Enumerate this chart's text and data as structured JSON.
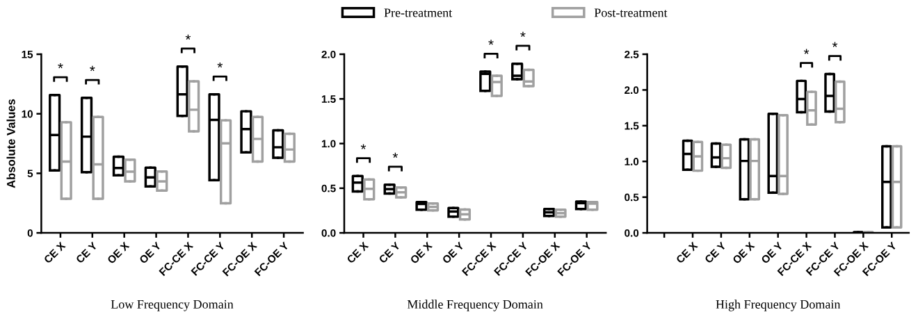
{
  "chart_data": [
    {
      "type": "box",
      "xlabel": "Low Frequency Domain",
      "ylabel": "Absolute Values",
      "legend": "top",
      "categories": [
        "CE X",
        "CE Y",
        "OE X",
        "OE Y",
        "FC-CE X",
        "FC-CE Y",
        "FC-OE X",
        "FC-OE Y"
      ],
      "ylim": [
        0,
        15
      ],
      "yticks": [
        0,
        5,
        10,
        15
      ],
      "series": [
        {
          "name": "Pre-treatment",
          "color": "#000000",
          "boxes": [
            {
              "low": 5.24,
              "q1": 5.24,
              "median": 8.22,
              "q3": 11.57,
              "high": 11.57
            },
            {
              "low": 5.1,
              "q1": 5.1,
              "median": 8.08,
              "q3": 11.34,
              "high": 11.34
            },
            {
              "low": 4.83,
              "q1": 4.83,
              "median": 5.45,
              "q3": 6.39,
              "high": 6.39
            },
            {
              "low": 3.9,
              "q1": 3.9,
              "median": 4.66,
              "q3": 5.47,
              "high": 5.47
            },
            {
              "low": 9.82,
              "q1": 9.82,
              "median": 11.63,
              "q3": 13.97,
              "high": 13.97
            },
            {
              "low": 4.42,
              "q1": 4.42,
              "median": 9.49,
              "q3": 11.63,
              "high": 11.63
            },
            {
              "low": 6.76,
              "q1": 6.76,
              "median": 8.71,
              "q3": 10.21,
              "high": 10.21
            },
            {
              "low": 6.31,
              "q1": 6.31,
              "median": 7.19,
              "q3": 8.61,
              "high": 8.61
            }
          ]
        },
        {
          "name": "Post-treatment",
          "color": "#a0a0a0",
          "boxes": [
            {
              "low": 2.86,
              "q1": 2.86,
              "median": 5.98,
              "q3": 9.29,
              "high": 9.29
            },
            {
              "low": 2.86,
              "q1": 2.86,
              "median": 5.75,
              "q3": 9.74,
              "high": 9.74
            },
            {
              "low": 4.32,
              "q1": 4.32,
              "median": 5.14,
              "q3": 6.14,
              "high": 6.14
            },
            {
              "low": 3.55,
              "q1": 3.55,
              "median": 4.32,
              "q3": 5.16,
              "high": 5.16
            },
            {
              "low": 8.53,
              "q1": 8.53,
              "median": 10.34,
              "q3": 12.72,
              "high": 12.72
            },
            {
              "low": 2.49,
              "q1": 2.49,
              "median": 7.52,
              "q3": 9.45,
              "high": 9.45
            },
            {
              "low": 5.98,
              "q1": 5.98,
              "median": 7.89,
              "q3": 9.74,
              "high": 9.74
            },
            {
              "low": 5.98,
              "q1": 5.98,
              "median": 7.0,
              "q3": 8.32,
              "high": 8.32
            }
          ]
        }
      ],
      "annotations": [
        {
          "text": "*",
          "x": "CE X",
          "y": 11.57
        },
        {
          "text": "*",
          "x": "CE Y",
          "y": 11.34
        },
        {
          "text": "*",
          "x": "FC-CE X",
          "y": 13.97
        },
        {
          "text": "*",
          "x": "FC-CE Y",
          "y": 11.63
        }
      ]
    },
    {
      "type": "box",
      "xlabel": "Middle Frequency Domain",
      "categories": [
        "CE X",
        "CE Y",
        "OE X",
        "OE Y",
        "FC-CE X",
        "FC-CE Y",
        "FC-OE X",
        "FC-OE Y"
      ],
      "ylim": [
        0,
        2.0
      ],
      "yticks": [
        {
          "value": 0,
          "label": "0.0"
        },
        0.5,
        {
          "value": 1,
          "label": "1.0"
        },
        1.5,
        {
          "value": 2,
          "label": "2.0"
        }
      ],
      "series": [
        {
          "name": "Pre-treatment",
          "color": "#000000",
          "boxes": [
            {
              "low": 0.464,
              "q1": 0.464,
              "median": 0.563,
              "q3": 0.636,
              "high": 0.636
            },
            {
              "low": 0.441,
              "q1": 0.441,
              "median": 0.49,
              "q3": 0.54,
              "high": 0.54
            },
            {
              "low": 0.259,
              "q1": 0.259,
              "median": 0.324,
              "q3": 0.345,
              "high": 0.345
            },
            {
              "low": 0.182,
              "q1": 0.182,
              "median": 0.239,
              "q3": 0.278,
              "high": 0.278
            },
            {
              "low": 1.59,
              "q1": 1.59,
              "median": 1.78,
              "q3": 1.805,
              "high": 1.805
            },
            {
              "low": 1.72,
              "q1": 1.72,
              "median": 1.759,
              "q3": 1.894,
              "high": 1.894
            },
            {
              "low": 0.189,
              "q1": 0.189,
              "median": 0.23,
              "q3": 0.267,
              "high": 0.267
            },
            {
              "low": 0.267,
              "q1": 0.267,
              "median": 0.333,
              "q3": 0.35,
              "high": 0.35
            }
          ]
        },
        {
          "name": "Post-treatment",
          "color": "#a0a0a0",
          "boxes": [
            {
              "low": 0.376,
              "q1": 0.376,
              "median": 0.493,
              "q3": 0.597,
              "high": 0.597
            },
            {
              "low": 0.397,
              "q1": 0.397,
              "median": 0.454,
              "q3": 0.508,
              "high": 0.508
            },
            {
              "low": 0.252,
              "q1": 0.252,
              "median": 0.29,
              "q3": 0.329,
              "high": 0.329
            },
            {
              "low": 0.15,
              "q1": 0.15,
              "median": 0.208,
              "q3": 0.262,
              "high": 0.262
            },
            {
              "low": 1.533,
              "q1": 1.533,
              "median": 1.689,
              "q3": 1.759,
              "high": 1.759
            },
            {
              "low": 1.642,
              "q1": 1.642,
              "median": 1.694,
              "q3": 1.826,
              "high": 1.826
            },
            {
              "low": 0.182,
              "q1": 0.182,
              "median": 0.22,
              "q3": 0.259,
              "high": 0.259
            },
            {
              "low": 0.259,
              "q1": 0.259,
              "median": 0.327,
              "q3": 0.345,
              "high": 0.345
            }
          ]
        }
      ],
      "annotations": [
        {
          "text": "*",
          "x": "CE X",
          "y": 0.636
        },
        {
          "text": "*",
          "x": "CE Y",
          "y": 0.54
        },
        {
          "text": "*",
          "x": "FC-CE X",
          "y": 1.805
        },
        {
          "text": "*",
          "x": "FC-CE Y",
          "y": 1.894
        }
      ]
    },
    {
      "type": "box",
      "xlabel": "High Frequency Domain",
      "categories": [
        null,
        "CE X",
        "CE Y",
        "OE X",
        "OE Y",
        "FC-CE X",
        "FC-CE Y",
        "FC-OE X",
        "FC-OE Y"
      ],
      "ylim": [
        0,
        2.5
      ],
      "yticks": [
        {
          "value": 0,
          "label": "0.0"
        },
        0.5,
        {
          "value": 1,
          "label": "1.0"
        },
        1.5,
        {
          "value": 2,
          "label": "2.0"
        },
        2.5
      ],
      "series": [
        {
          "name": "Pre-treatment",
          "color": "#000000",
          "boxes": [
            null,
            {
              "low": 0.883,
              "q1": 0.883,
              "median": 1.104,
              "q3": 1.289,
              "high": 1.289
            },
            {
              "low": 0.925,
              "q1": 0.925,
              "median": 1.055,
              "q3": 1.25,
              "high": 1.25
            },
            {
              "low": 0.471,
              "q1": 0.471,
              "median": 1.006,
              "q3": 1.308,
              "high": 1.308
            },
            {
              "low": 0.562,
              "q1": 0.562,
              "median": 0.795,
              "q3": 1.666,
              "high": 1.666
            },
            {
              "low": 1.688,
              "q1": 1.688,
              "median": 1.873,
              "q3": 2.127,
              "high": 2.127
            },
            {
              "low": 1.698,
              "q1": 1.698,
              "median": 1.916,
              "q3": 2.224,
              "high": 2.224
            },
            {
              "low": 0.0,
              "q1": 0.0,
              "median": 0.005,
              "q3": 0.01,
              "high": 0.01
            },
            {
              "low": 0.075,
              "q1": 0.075,
              "median": 0.714,
              "q3": 1.211,
              "high": 1.211
            }
          ]
        },
        {
          "name": "Post-treatment",
          "color": "#a0a0a0",
          "boxes": [
            null,
            {
              "low": 0.87,
              "q1": 0.87,
              "median": 1.071,
              "q3": 1.273,
              "high": 1.273
            },
            {
              "low": 0.909,
              "q1": 0.909,
              "median": 1.045,
              "q3": 1.234,
              "high": 1.234
            },
            {
              "low": 0.471,
              "q1": 0.471,
              "median": 1.006,
              "q3": 1.308,
              "high": 1.308
            },
            {
              "low": 0.545,
              "q1": 0.545,
              "median": 0.795,
              "q3": 1.646,
              "high": 1.646
            },
            {
              "low": 1.516,
              "q1": 1.516,
              "median": 1.714,
              "q3": 1.974,
              "high": 1.974
            },
            {
              "low": 1.549,
              "q1": 1.549,
              "median": 1.737,
              "q3": 2.117,
              "high": 2.117
            },
            {
              "low": 0.0,
              "q1": 0.0,
              "median": 0.005,
              "q3": 0.01,
              "high": 0.01
            },
            {
              "low": 0.075,
              "q1": 0.075,
              "median": 0.714,
              "q3": 1.211,
              "high": 1.211
            }
          ]
        }
      ],
      "annotations": [
        {
          "text": "*",
          "x": "FC-CE X",
          "y": 2.127
        },
        {
          "text": "*",
          "x": "FC-CE Y",
          "y": 2.224
        }
      ]
    }
  ]
}
